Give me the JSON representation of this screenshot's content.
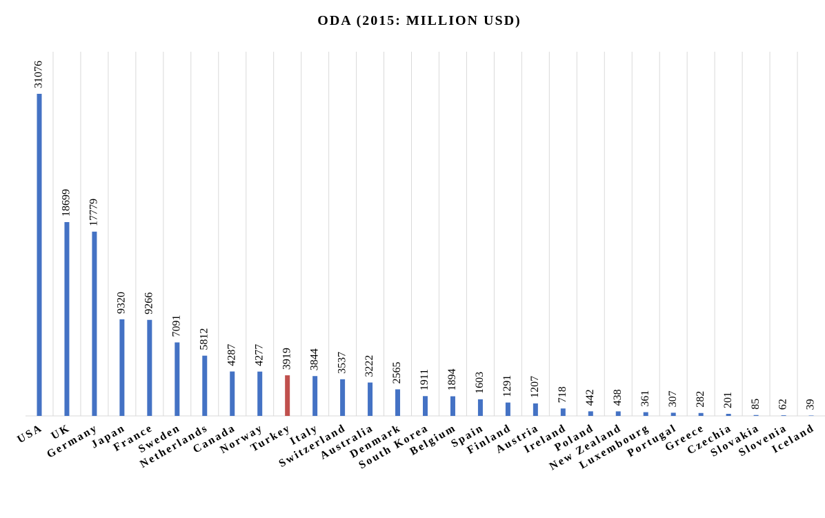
{
  "chart_data": {
    "type": "bar",
    "title": "ODA (2015: MILLION USD)",
    "categories": [
      "USA",
      "UK",
      "Germany",
      "Japan",
      "France",
      "Sweden",
      "Netherlands",
      "Canada",
      "Norway",
      "Turkey",
      "Italy",
      "Switzerland",
      "Australia",
      "Denmark",
      "South Korea",
      "Belgium",
      "Spain",
      "Finland",
      "Austria",
      "Ireland",
      "Poland",
      "New Zealand",
      "Luxembourg",
      "Portugal",
      "Greece",
      "Czechia",
      "Slovakia",
      "Slovenia",
      "Iceland"
    ],
    "values": [
      31076,
      18699,
      17779,
      9320,
      9266,
      7091,
      5812,
      4287,
      4277,
      3919,
      3844,
      3537,
      3222,
      2565,
      1911,
      1894,
      1603,
      1291,
      1207,
      718,
      442,
      438,
      361,
      307,
      282,
      201,
      85,
      62,
      39
    ],
    "colors": [
      "#4472c4",
      "#4472c4",
      "#4472c4",
      "#4472c4",
      "#4472c4",
      "#4472c4",
      "#4472c4",
      "#4472c4",
      "#4472c4",
      "#c0504d",
      "#4472c4",
      "#4472c4",
      "#4472c4",
      "#4472c4",
      "#4472c4",
      "#4472c4",
      "#4472c4",
      "#4472c4",
      "#4472c4",
      "#4472c4",
      "#4472c4",
      "#4472c4",
      "#4472c4",
      "#4472c4",
      "#4472c4",
      "#4472c4",
      "#4472c4",
      "#4472c4",
      "#4472c4"
    ],
    "grid": true
  }
}
